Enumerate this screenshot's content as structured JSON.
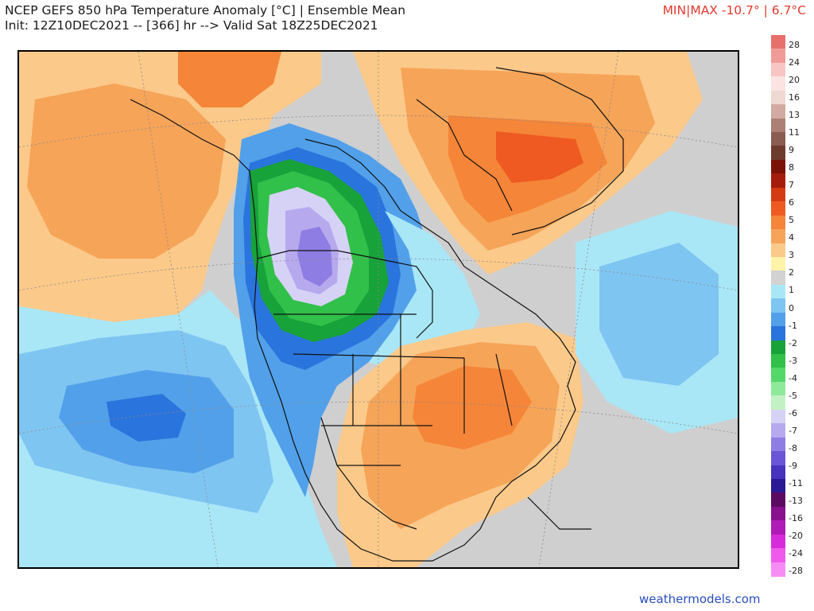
{
  "header": {
    "title_line1": "NCEP GEFS 850 hPa Temperature Anomaly [°C] | Ensemble Mean",
    "title_line2": "Init: 12Z10DEC2021 -- [366] hr --> Valid Sat 18Z25DEC2021",
    "minmax": "MIN|MAX -10.7° | 6.7°C"
  },
  "colorbar": {
    "units": "°C",
    "labels": [
      "28",
      "24",
      "20",
      "16",
      "13",
      "11",
      "9",
      "8",
      "7",
      "6",
      "5",
      "4",
      "3",
      "2",
      "1",
      "0",
      "-1",
      "-2",
      "-3",
      "-4",
      "-5",
      "-6",
      "-7",
      "-8",
      "-9",
      "-11",
      "-13",
      "-16",
      "-20",
      "-24",
      "-28"
    ],
    "colors": [
      "#e8706c",
      "#f19b98",
      "#f7c6c4",
      "#fbe3e2",
      "#efd7d2",
      "#d2aaa2",
      "#ad8076",
      "#8a5c52",
      "#6e3b2f",
      "#7a1208",
      "#a51c0c",
      "#d43a14",
      "#ee5a22",
      "#f58538",
      "#f6a458",
      "#fbc98a",
      "#fff3a8",
      "#d2d2d2",
      "#a9e7f7",
      "#7fc5f2",
      "#52a0ea",
      "#2a74dd",
      "#18a23a",
      "#31c049",
      "#54d86a",
      "#8fe99a",
      "#c2f2c4",
      "#d6d2f6",
      "#b6a9ee",
      "#8e7ee3",
      "#6a55d6",
      "#4833bf",
      "#2a1a94",
      "#5b0a62",
      "#88108e",
      "#b01ab7",
      "#d72ad8",
      "#ef5aec",
      "#f78cf4"
    ]
  },
  "map": {
    "region": "North America",
    "colors": {
      "ocean_neutral": "#cfcfcf",
      "warm_light": "#fbc98a",
      "warm_medium": "#f6a458",
      "warm_strong": "#f58538",
      "warm_stronger": "#ee5a22",
      "warm_peak": "#d43a14",
      "pale_yellow": "#fff3a8",
      "cool_light": "#a9e7f7",
      "cool_medium": "#7fc5f2",
      "cool_strong": "#52a0ea",
      "cool_stronger": "#2a74dd",
      "green_dark": "#18a23a",
      "green_mid": "#31c049",
      "green_light": "#8fe99a",
      "purple_light": "#d6d2f6",
      "purple_mid": "#b6a9ee",
      "purple_deep": "#8e7ee3",
      "outline": "#111111",
      "graticule": "#8a8a8a"
    }
  },
  "footer": {
    "watermark": "weathermodels.com"
  }
}
